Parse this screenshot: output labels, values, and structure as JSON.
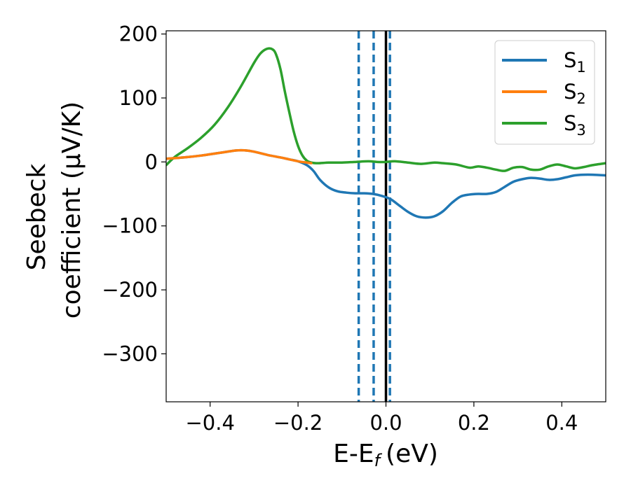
{
  "chart_data": {
    "type": "line",
    "xlabel": "E-E",
    "xlabel_sub": "f",
    "xlabel_unit": "(eV)",
    "ylabel_line1": "Seebeck",
    "ylabel_line2": "coefficient  (μV/K)",
    "xlim": [
      -0.5,
      0.5
    ],
    "ylim": [
      -375,
      205
    ],
    "xticks": [
      -0.4,
      -0.2,
      0.0,
      0.2,
      0.4
    ],
    "xtick_labels": [
      "−0.4",
      "−0.2",
      "0.0",
      "0.2",
      "0.4"
    ],
    "yticks": [
      200,
      100,
      0,
      -100,
      -200,
      -300
    ],
    "ytick_labels": [
      "200",
      "100",
      "0",
      "−100",
      "−200",
      "−300"
    ],
    "grid": false,
    "legend_position": "top-right",
    "vertical_lines": [
      {
        "x": -0.062,
        "style": "dashed",
        "color": "#1f77b4"
      },
      {
        "x": -0.028,
        "style": "dashed",
        "color": "#1f77b4"
      },
      {
        "x": 0.009,
        "style": "dashed",
        "color": "#1f77b4"
      },
      {
        "x": 0.0,
        "style": "solid",
        "color": "#000000"
      }
    ],
    "series": [
      {
        "name": "S",
        "sub": "1",
        "color": "#1f77b4",
        "x": [
          -0.5,
          -0.46,
          -0.42,
          -0.38,
          -0.34,
          -0.32,
          -0.3,
          -0.27,
          -0.24,
          -0.22,
          -0.2,
          -0.18,
          -0.165,
          -0.15,
          -0.13,
          -0.11,
          -0.09,
          -0.07,
          -0.05,
          -0.03,
          -0.01,
          0.01,
          0.03,
          0.05,
          0.07,
          0.09,
          0.11,
          0.13,
          0.15,
          0.17,
          0.19,
          0.21,
          0.23,
          0.25,
          0.27,
          0.29,
          0.31,
          0.33,
          0.35,
          0.37,
          0.39,
          0.41,
          0.43,
          0.45,
          0.47,
          0.5
        ],
        "y": [
          5,
          7,
          10,
          14,
          18,
          18,
          16,
          11,
          7,
          4,
          1,
          -5,
          -14,
          -28,
          -40,
          -46,
          -48,
          -49,
          -49,
          -50,
          -53,
          -58,
          -68,
          -78,
          -85,
          -87,
          -85,
          -77,
          -64,
          -54,
          -51,
          -50,
          -50,
          -47,
          -39,
          -31,
          -27,
          -25,
          -26,
          -28,
          -27,
          -24,
          -21,
          -20,
          -20,
          -21
        ]
      },
      {
        "name": "S",
        "sub": "2",
        "color": "#ff7f0e",
        "x": [
          -0.5,
          -0.46,
          -0.42,
          -0.38,
          -0.34,
          -0.32,
          -0.3,
          -0.27,
          -0.24,
          -0.22,
          -0.2,
          -0.18,
          -0.17
        ],
        "y": [
          5,
          7,
          10,
          14,
          18,
          18,
          16,
          11,
          7,
          4,
          1,
          -1,
          -2
        ]
      },
      {
        "name": "S",
        "sub": "3",
        "color": "#2ca02c",
        "x": [
          -0.5,
          -0.48,
          -0.45,
          -0.42,
          -0.39,
          -0.36,
          -0.33,
          -0.3,
          -0.285,
          -0.27,
          -0.258,
          -0.25,
          -0.24,
          -0.23,
          -0.22,
          -0.21,
          -0.2,
          -0.19,
          -0.18,
          -0.17,
          -0.155,
          -0.13,
          -0.1,
          -0.07,
          -0.04,
          -0.02,
          0.0,
          0.02,
          0.05,
          0.08,
          0.11,
          0.13,
          0.16,
          0.19,
          0.21,
          0.23,
          0.25,
          0.27,
          0.29,
          0.31,
          0.33,
          0.35,
          0.37,
          0.39,
          0.41,
          0.43,
          0.45,
          0.47,
          0.5
        ],
        "y": [
          -5,
          8,
          22,
          38,
          58,
          85,
          118,
          155,
          170,
          177,
          176,
          168,
          145,
          110,
          78,
          48,
          25,
          10,
          2,
          -1,
          -2,
          -1,
          -1,
          0,
          1,
          0,
          0,
          1,
          -1,
          -3,
          -1,
          -2,
          -4,
          -9,
          -7,
          -9,
          -12,
          -14,
          -9,
          -8,
          -12,
          -12,
          -7,
          -4,
          -7,
          -10,
          -8,
          -5,
          -2
        ]
      }
    ]
  }
}
